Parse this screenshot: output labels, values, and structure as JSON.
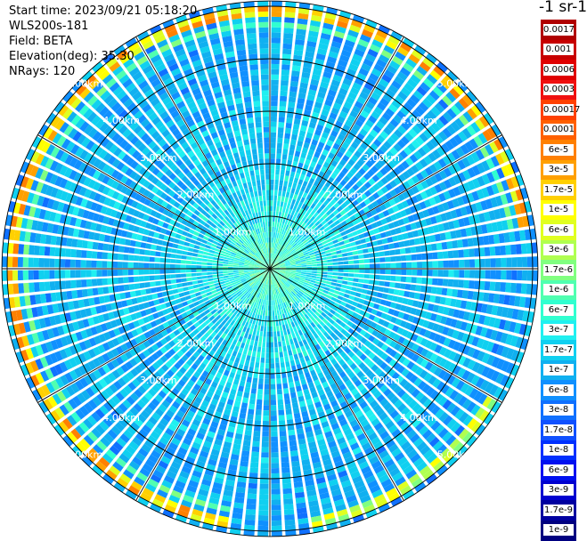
{
  "header": {
    "start_time": "Start time: 2023/09/21 05:18:20",
    "instrument": "WLS200s-181",
    "field": "Field: BETA",
    "elevation": "Elevation(deg): 35.30",
    "nrays": "NRays: 120"
  },
  "colorbar": {
    "title": "-1 sr-1",
    "labels": [
      "0.0017",
      "0.001",
      "0.0006",
      "0.0003",
      "0.00017",
      "0.0001",
      "6e-5",
      "3e-5",
      "1.7e-5",
      "1e-5",
      "6e-6",
      "3e-6",
      "1.7e-6",
      "1e-6",
      "6e-7",
      "3e-7",
      "1.7e-7",
      "1e-7",
      "6e-8",
      "3e-8",
      "1.7e-8",
      "1e-8",
      "6e-9",
      "3e-9",
      "1.7e-9",
      "1e-9"
    ],
    "colors": [
      "#b00000",
      "#c80000",
      "#e00000",
      "#f01010",
      "#ff4000",
      "#ff6000",
      "#ff8000",
      "#ffa000",
      "#ffd000",
      "#ffff00",
      "#e0ff20",
      "#b0ff50",
      "#80ff80",
      "#50ffb0",
      "#30ffd0",
      "#20f0f0",
      "#10d0f0",
      "#10b0f0",
      "#1090ff",
      "#1070ff",
      "#1050ff",
      "#0030ff",
      "#0010f0",
      "#0000d0",
      "#0000a0",
      "#000080"
    ]
  },
  "chart_data": {
    "type": "ppi",
    "field": "BETA",
    "elevation_deg": 35.3,
    "n_rays": 120,
    "start_time": "2023/09/21 05:18:20",
    "range_ring_labels": [
      "1.00km",
      "2.00km",
      "3.00km",
      "4.00km",
      "5.00km"
    ],
    "range_rings_km": [
      1,
      2,
      3,
      4,
      5
    ],
    "max_range_km": 5.1,
    "spoke_angles_deg": [
      0,
      30,
      60,
      90,
      120,
      150,
      180,
      210,
      240,
      270,
      300,
      330
    ],
    "colorscale": "log",
    "value_range": [
      1e-09,
      0.0017
    ],
    "typical_value": "1e-8 to 3e-8",
    "near_range_value": "3e-7 to 1e-6",
    "outer_band": {
      "range_km": [
        4.8,
        5.0
      ],
      "value_range": [
        1e-06,
        3e-05
      ],
      "azimuth_deg": [
        190,
        80
      ]
    }
  }
}
